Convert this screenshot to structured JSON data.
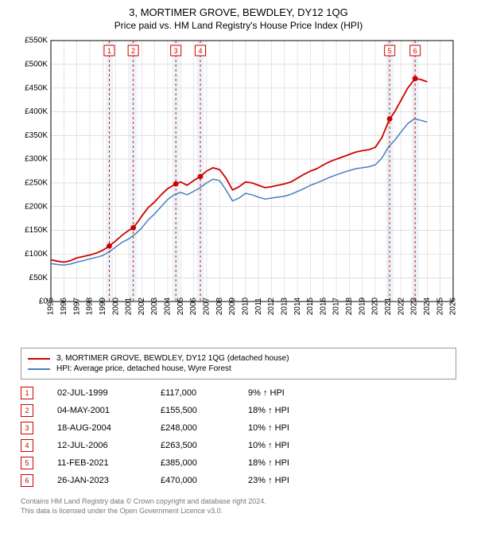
{
  "header": {
    "title": "3, MORTIMER GROVE, BEWDLEY, DY12 1QG",
    "subtitle": "Price paid vs. HM Land Registry's House Price Index (HPI)"
  },
  "chart": {
    "type": "line",
    "background_color": "#ffffff",
    "plot_border_color": "#000000",
    "grid_color": "#cccccc",
    "highlight_band_color": "#e2ecf6",
    "highlight_band_opacity": 0.65,
    "marker_dash_color": "#d00000",
    "axis_fontsize": 10,
    "x": {
      "min": 1995,
      "max": 2026,
      "tick_step": 1
    },
    "y": {
      "min": 0,
      "max": 550000,
      "tick_step": 50000,
      "prefix": "£",
      "suffix": "K",
      "divide": 1000
    },
    "series": [
      {
        "id": "property",
        "label": "3, MORTIMER GROVE, BEWDLEY, DY12 1QG (detached house)",
        "color": "#d00000",
        "width": 1.8,
        "points": [
          [
            1995.0,
            88000
          ],
          [
            1995.5,
            85000
          ],
          [
            1996.0,
            83000
          ],
          [
            1996.5,
            86000
          ],
          [
            1997.0,
            92000
          ],
          [
            1997.5,
            95000
          ],
          [
            1998.0,
            98000
          ],
          [
            1998.5,
            102000
          ],
          [
            1999.0,
            108000
          ],
          [
            1999.5,
            117000
          ],
          [
            2000.0,
            128000
          ],
          [
            2000.5,
            140000
          ],
          [
            2001.0,
            150000
          ],
          [
            2001.35,
            155500
          ],
          [
            2001.7,
            168000
          ],
          [
            2002.0,
            180000
          ],
          [
            2002.5,
            198000
          ],
          [
            2003.0,
            210000
          ],
          [
            2003.5,
            225000
          ],
          [
            2004.0,
            238000
          ],
          [
            2004.63,
            248000
          ],
          [
            2005.0,
            252000
          ],
          [
            2005.5,
            245000
          ],
          [
            2006.0,
            255000
          ],
          [
            2006.52,
            263500
          ],
          [
            2007.0,
            275000
          ],
          [
            2007.5,
            282000
          ],
          [
            2008.0,
            278000
          ],
          [
            2008.5,
            260000
          ],
          [
            2009.0,
            235000
          ],
          [
            2009.5,
            242000
          ],
          [
            2010.0,
            252000
          ],
          [
            2010.5,
            250000
          ],
          [
            2011.0,
            245000
          ],
          [
            2011.5,
            240000
          ],
          [
            2012.0,
            242000
          ],
          [
            2012.5,
            245000
          ],
          [
            2013.0,
            248000
          ],
          [
            2013.5,
            252000
          ],
          [
            2014.0,
            260000
          ],
          [
            2014.5,
            268000
          ],
          [
            2015.0,
            275000
          ],
          [
            2015.5,
            280000
          ],
          [
            2016.0,
            288000
          ],
          [
            2016.5,
            295000
          ],
          [
            2017.0,
            300000
          ],
          [
            2017.5,
            305000
          ],
          [
            2018.0,
            310000
          ],
          [
            2018.5,
            315000
          ],
          [
            2019.0,
            318000
          ],
          [
            2019.5,
            320000
          ],
          [
            2020.0,
            325000
          ],
          [
            2020.5,
            345000
          ],
          [
            2021.11,
            385000
          ],
          [
            2021.5,
            400000
          ],
          [
            2022.0,
            425000
          ],
          [
            2022.5,
            450000
          ],
          [
            2023.07,
            470000
          ],
          [
            2023.5,
            468000
          ],
          [
            2024.0,
            463000
          ]
        ]
      },
      {
        "id": "hpi",
        "label": "HPI: Average price, detached house, Wyre Forest",
        "color": "#4a7dc0",
        "width": 1.5,
        "points": [
          [
            1995.0,
            80000
          ],
          [
            1995.5,
            78000
          ],
          [
            1996.0,
            77000
          ],
          [
            1996.5,
            79000
          ],
          [
            1997.0,
            83000
          ],
          [
            1997.5,
            86000
          ],
          [
            1998.0,
            90000
          ],
          [
            1998.5,
            93000
          ],
          [
            1999.0,
            97000
          ],
          [
            1999.5,
            105000
          ],
          [
            2000.0,
            115000
          ],
          [
            2000.5,
            125000
          ],
          [
            2001.0,
            132000
          ],
          [
            2001.5,
            142000
          ],
          [
            2002.0,
            155000
          ],
          [
            2002.5,
            172000
          ],
          [
            2003.0,
            185000
          ],
          [
            2003.5,
            200000
          ],
          [
            2004.0,
            215000
          ],
          [
            2004.5,
            225000
          ],
          [
            2005.0,
            230000
          ],
          [
            2005.5,
            225000
          ],
          [
            2006.0,
            232000
          ],
          [
            2006.5,
            240000
          ],
          [
            2007.0,
            250000
          ],
          [
            2007.5,
            258000
          ],
          [
            2008.0,
            255000
          ],
          [
            2008.5,
            235000
          ],
          [
            2009.0,
            212000
          ],
          [
            2009.5,
            218000
          ],
          [
            2010.0,
            228000
          ],
          [
            2010.5,
            225000
          ],
          [
            2011.0,
            220000
          ],
          [
            2011.5,
            216000
          ],
          [
            2012.0,
            218000
          ],
          [
            2012.5,
            220000
          ],
          [
            2013.0,
            222000
          ],
          [
            2013.5,
            226000
          ],
          [
            2014.0,
            232000
          ],
          [
            2014.5,
            238000
          ],
          [
            2015.0,
            245000
          ],
          [
            2015.5,
            250000
          ],
          [
            2016.0,
            256000
          ],
          [
            2016.5,
            262000
          ],
          [
            2017.0,
            267000
          ],
          [
            2017.5,
            272000
          ],
          [
            2018.0,
            276000
          ],
          [
            2018.5,
            280000
          ],
          [
            2019.0,
            282000
          ],
          [
            2019.5,
            284000
          ],
          [
            2020.0,
            288000
          ],
          [
            2020.5,
            302000
          ],
          [
            2021.0,
            325000
          ],
          [
            2021.5,
            340000
          ],
          [
            2022.0,
            358000
          ],
          [
            2022.5,
            375000
          ],
          [
            2023.0,
            385000
          ],
          [
            2023.5,
            382000
          ],
          [
            2024.0,
            378000
          ]
        ]
      }
    ],
    "sale_markers": [
      {
        "n": 1,
        "x": 1999.5,
        "y": 117000
      },
      {
        "n": 2,
        "x": 2001.35,
        "y": 155500
      },
      {
        "n": 3,
        "x": 2004.63,
        "y": 248000
      },
      {
        "n": 4,
        "x": 2006.52,
        "y": 263500
      },
      {
        "n": 5,
        "x": 2021.11,
        "y": 385000
      },
      {
        "n": 6,
        "x": 2023.07,
        "y": 470000
      }
    ],
    "marker_box": {
      "fill": "#ffffff",
      "stroke": "#d00000",
      "text_color": "#d00000",
      "size": 13
    }
  },
  "legend": {
    "items": [
      {
        "color": "#d00000",
        "label": "3, MORTIMER GROVE, BEWDLEY, DY12 1QG (detached house)"
      },
      {
        "color": "#4a7dc0",
        "label": "HPI: Average price, detached house, Wyre Forest"
      }
    ]
  },
  "table": {
    "badge_stroke": "#d00000",
    "badge_text_color": "#d00000",
    "rows": [
      {
        "n": "1",
        "date": "02-JUL-1999",
        "price": "£117,000",
        "pct": "9% ↑ HPI"
      },
      {
        "n": "2",
        "date": "04-MAY-2001",
        "price": "£155,500",
        "pct": "18% ↑ HPI"
      },
      {
        "n": "3",
        "date": "18-AUG-2004",
        "price": "£248,000",
        "pct": "10% ↑ HPI"
      },
      {
        "n": "4",
        "date": "12-JUL-2006",
        "price": "£263,500",
        "pct": "10% ↑ HPI"
      },
      {
        "n": "5",
        "date": "11-FEB-2021",
        "price": "£385,000",
        "pct": "18% ↑ HPI"
      },
      {
        "n": "6",
        "date": "26-JAN-2023",
        "price": "£470,000",
        "pct": "23% ↑ HPI"
      }
    ]
  },
  "footer": {
    "line1": "Contains HM Land Registry data © Crown copyright and database right 2024.",
    "line2": "This data is licensed under the Open Government Licence v3.0."
  }
}
